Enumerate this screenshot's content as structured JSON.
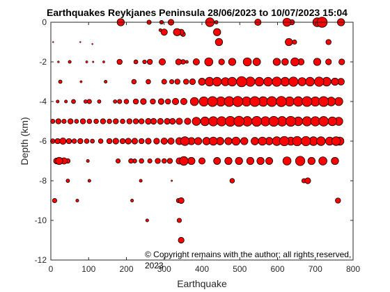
{
  "chart_data": {
    "type": "scatter",
    "title": "Earthquakes Reykjanes Peninsula 28/06/2023 to 10/07/2023 15:04",
    "xlabel": "Earthquake",
    "ylabel": "Depth (km)",
    "xlim": [
      0,
      800
    ],
    "ylim": [
      -12,
      0
    ],
    "xticks": [
      0,
      100,
      200,
      300,
      400,
      500,
      600,
      700,
      800
    ],
    "yticks": [
      0,
      -2,
      -4,
      -6,
      -8,
      -10,
      -12
    ],
    "grid": false,
    "marker_color": "#ff0000",
    "marker_edge_color": "#000000",
    "size_encodes": "magnitude",
    "annotation": {
      "line1": "© Copyright remains with the author; all rights reserved,",
      "line2": "2023"
    },
    "points": [
      [
        185,
        0,
        2.5
      ],
      [
        260,
        0,
        1.5
      ],
      [
        293,
        0,
        1.3
      ],
      [
        318,
        0,
        2.0
      ],
      [
        421,
        0,
        3.0
      ],
      [
        438,
        0,
        1.2
      ],
      [
        548,
        0,
        2.2
      ],
      [
        625,
        0,
        2.8
      ],
      [
        638,
        0,
        1.8
      ],
      [
        705,
        0,
        3.0
      ],
      [
        718,
        0,
        3.5
      ],
      [
        768,
        0,
        2.5
      ],
      [
        290,
        -0.4,
        1.0
      ],
      [
        300,
        -0.5,
        2.2
      ],
      [
        334,
        -0.5,
        2.5
      ],
      [
        345,
        -0.5,
        2.0
      ],
      [
        350,
        -0.6,
        1.6
      ],
      [
        440,
        -0.5,
        2.5
      ],
      [
        445,
        -1.0,
        2.5
      ],
      [
        630,
        -1.0,
        2.5
      ],
      [
        645,
        -1.0,
        1.5
      ],
      [
        735,
        -1.0,
        1.8
      ],
      [
        6,
        -1.0,
        0.4
      ],
      [
        78,
        -1.0,
        0.4
      ],
      [
        110,
        -1.1,
        0.4
      ],
      [
        20,
        -2,
        0.7
      ],
      [
        50,
        -2,
        1.0
      ],
      [
        95,
        -2,
        0.8
      ],
      [
        112,
        -2,
        0.6
      ],
      [
        140,
        -2,
        0.8
      ],
      [
        182,
        -2,
        1.8
      ],
      [
        225,
        -2,
        1.4
      ],
      [
        248,
        -2,
        1.3
      ],
      [
        262,
        -2,
        1.8
      ],
      [
        295,
        -2,
        2.2
      ],
      [
        338,
        -2,
        2.0
      ],
      [
        350,
        -2,
        1.6
      ],
      [
        360,
        -2,
        1.0
      ],
      [
        385,
        -2,
        2.2
      ],
      [
        418,
        -2,
        2.8
      ],
      [
        452,
        -2,
        2.0
      ],
      [
        480,
        -2,
        2.5
      ],
      [
        520,
        -2,
        2.8
      ],
      [
        545,
        -2,
        2.6
      ],
      [
        598,
        -2,
        2.5
      ],
      [
        620,
        -2,
        2.3
      ],
      [
        646,
        -2,
        2.8
      ],
      [
        662,
        -2,
        2.2
      ],
      [
        705,
        -2,
        2.5
      ],
      [
        735,
        -2,
        2.0
      ],
      [
        770,
        -2,
        2.0
      ],
      [
        25,
        -3,
        1.2
      ],
      [
        80,
        -3,
        0.8
      ],
      [
        145,
        -3,
        1.0
      ],
      [
        220,
        -3,
        1.6
      ],
      [
        258,
        -3,
        1.6
      ],
      [
        300,
        -3,
        1.7
      ],
      [
        320,
        -3,
        1.5
      ],
      [
        335,
        -3,
        1.8
      ],
      [
        358,
        -3,
        1.8
      ],
      [
        375,
        -3,
        2.0
      ],
      [
        400,
        -3,
        2.4
      ],
      [
        420,
        -3,
        3.0
      ],
      [
        440,
        -3,
        3.0
      ],
      [
        462,
        -3,
        2.8
      ],
      [
        480,
        -3,
        3.0
      ],
      [
        505,
        -3,
        3.5
      ],
      [
        528,
        -3,
        3.2
      ],
      [
        552,
        -3,
        3.0
      ],
      [
        575,
        -3,
        3.0
      ],
      [
        598,
        -3,
        3.2
      ],
      [
        620,
        -3,
        3.0
      ],
      [
        642,
        -3,
        3.2
      ],
      [
        665,
        -3,
        2.8
      ],
      [
        686,
        -3,
        3.0
      ],
      [
        710,
        -3,
        3.2
      ],
      [
        730,
        -3,
        3.0
      ],
      [
        752,
        -3,
        2.5
      ],
      [
        768,
        -3,
        2.3
      ],
      [
        18,
        -4,
        1.0
      ],
      [
        40,
        -4,
        1.0
      ],
      [
        60,
        -4,
        1.4
      ],
      [
        92,
        -4,
        1.2
      ],
      [
        102,
        -4,
        1.5
      ],
      [
        128,
        -4,
        1.2
      ],
      [
        170,
        -4,
        1.2
      ],
      [
        182,
        -4,
        1.5
      ],
      [
        200,
        -4,
        1.6
      ],
      [
        225,
        -4,
        1.8
      ],
      [
        245,
        -4,
        2.0
      ],
      [
        270,
        -4,
        1.8
      ],
      [
        292,
        -4,
        2.0
      ],
      [
        310,
        -4,
        1.8
      ],
      [
        330,
        -4,
        2.2
      ],
      [
        352,
        -4,
        2.2
      ],
      [
        380,
        -4,
        2.8
      ],
      [
        405,
        -4,
        3.2
      ],
      [
        428,
        -4,
        3.4
      ],
      [
        450,
        -4,
        3.2
      ],
      [
        472,
        -4,
        3.4
      ],
      [
        495,
        -4,
        3.5
      ],
      [
        518,
        -4,
        3.2
      ],
      [
        540,
        -4,
        3.4
      ],
      [
        562,
        -4,
        3.3
      ],
      [
        585,
        -4,
        3.4
      ],
      [
        610,
        -4,
        3.5
      ],
      [
        632,
        -4,
        3.2
      ],
      [
        655,
        -4,
        3.3
      ],
      [
        678,
        -4,
        3.4
      ],
      [
        700,
        -4,
        3.2
      ],
      [
        722,
        -4,
        3.4
      ],
      [
        742,
        -4,
        3.0
      ],
      [
        762,
        -4,
        2.8
      ],
      [
        5,
        -5,
        1.5
      ],
      [
        20,
        -5,
        1.8
      ],
      [
        35,
        -5,
        1.5
      ],
      [
        52,
        -5,
        1.8
      ],
      [
        68,
        -5,
        1.4
      ],
      [
        85,
        -5,
        1.8
      ],
      [
        102,
        -5,
        1.6
      ],
      [
        120,
        -5,
        1.6
      ],
      [
        138,
        -5,
        1.8
      ],
      [
        155,
        -5,
        1.6
      ],
      [
        172,
        -5,
        1.8
      ],
      [
        190,
        -5,
        1.6
      ],
      [
        208,
        -5,
        1.8
      ],
      [
        225,
        -5,
        1.8
      ],
      [
        240,
        -5,
        1.8
      ],
      [
        258,
        -5,
        2.0
      ],
      [
        272,
        -5,
        2.0
      ],
      [
        290,
        -5,
        2.0
      ],
      [
        308,
        -5,
        2.0
      ],
      [
        322,
        -5,
        2.0
      ],
      [
        340,
        -5,
        2.2
      ],
      [
        362,
        -5,
        2.2
      ],
      [
        385,
        -5,
        2.8
      ],
      [
        408,
        -5,
        3.0
      ],
      [
        430,
        -5,
        3.2
      ],
      [
        452,
        -5,
        3.2
      ],
      [
        475,
        -5,
        3.4
      ],
      [
        498,
        -5,
        3.5
      ],
      [
        520,
        -5,
        3.3
      ],
      [
        545,
        -5,
        3.4
      ],
      [
        568,
        -5,
        3.2
      ],
      [
        590,
        -5,
        3.4
      ],
      [
        612,
        -5,
        3.3
      ],
      [
        635,
        -5,
        3.4
      ],
      [
        655,
        -5,
        3.0
      ],
      [
        678,
        -5,
        3.2
      ],
      [
        700,
        -5,
        3.2
      ],
      [
        722,
        -5,
        3.3
      ],
      [
        745,
        -5,
        3.0
      ],
      [
        762,
        -5,
        2.8
      ],
      [
        5,
        -6,
        1.6
      ],
      [
        18,
        -6,
        1.8
      ],
      [
        32,
        -6,
        2.2
      ],
      [
        48,
        -6,
        1.8
      ],
      [
        62,
        -6,
        1.6
      ],
      [
        78,
        -6,
        1.8
      ],
      [
        95,
        -6,
        1.6
      ],
      [
        110,
        -6,
        1.4
      ],
      [
        132,
        -6,
        1.6
      ],
      [
        155,
        -6,
        1.8
      ],
      [
        172,
        -6,
        2.0
      ],
      [
        190,
        -6,
        1.8
      ],
      [
        205,
        -6,
        2.0
      ],
      [
        222,
        -6,
        2.0
      ],
      [
        240,
        -6,
        1.8
      ],
      [
        258,
        -6,
        2.0
      ],
      [
        280,
        -6,
        2.0
      ],
      [
        300,
        -6,
        2.2
      ],
      [
        318,
        -6,
        2.2
      ],
      [
        340,
        -6,
        2.4
      ],
      [
        355,
        -6,
        3.0
      ],
      [
        372,
        -6,
        2.5
      ],
      [
        390,
        -6,
        2.5
      ],
      [
        412,
        -6,
        2.6
      ],
      [
        430,
        -6,
        2.8
      ],
      [
        448,
        -6,
        2.6
      ],
      [
        470,
        -6,
        2.5
      ],
      [
        490,
        -6,
        2.8
      ],
      [
        512,
        -6,
        2.5
      ],
      [
        540,
        -6,
        2.6
      ],
      [
        560,
        -6,
        2.8
      ],
      [
        578,
        -6,
        2.6
      ],
      [
        598,
        -6,
        3.0
      ],
      [
        618,
        -6,
        3.2
      ],
      [
        635,
        -6,
        2.8
      ],
      [
        652,
        -6,
        3.2
      ],
      [
        675,
        -6,
        3.2
      ],
      [
        695,
        -6,
        3.0
      ],
      [
        715,
        -6,
        3.0
      ],
      [
        738,
        -6,
        2.8
      ],
      [
        755,
        -6,
        3.0
      ],
      [
        765,
        -6,
        2.8
      ],
      [
        15,
        -7,
        2.0
      ],
      [
        22,
        -7,
        2.5
      ],
      [
        35,
        -7,
        2.2
      ],
      [
        45,
        -7,
        1.6
      ],
      [
        98,
        -7,
        1.0
      ],
      [
        178,
        -7,
        1.5
      ],
      [
        212,
        -7,
        1.6
      ],
      [
        222,
        -7,
        1.4
      ],
      [
        240,
        -7,
        1.6
      ],
      [
        262,
        -7,
        1.5
      ],
      [
        283,
        -7,
        1.8
      ],
      [
        300,
        -7,
        1.6
      ],
      [
        315,
        -7,
        1.8
      ],
      [
        340,
        -7,
        2.2
      ],
      [
        352,
        -7,
        3.0
      ],
      [
        372,
        -7,
        2.5
      ],
      [
        400,
        -7,
        2.2
      ],
      [
        440,
        -7,
        2.4
      ],
      [
        470,
        -7,
        2.5
      ],
      [
        498,
        -7,
        2.5
      ],
      [
        528,
        -7,
        2.5
      ],
      [
        555,
        -7,
        2.5
      ],
      [
        578,
        -7,
        2.4
      ],
      [
        625,
        -7,
        2.8
      ],
      [
        660,
        -7,
        3.2
      ],
      [
        690,
        -7,
        2.5
      ],
      [
        720,
        -7,
        2.8
      ],
      [
        752,
        -7,
        2.5
      ],
      [
        45,
        -8,
        1.2
      ],
      [
        102,
        -8,
        1.0
      ],
      [
        238,
        -8,
        1.0
      ],
      [
        320,
        -8,
        0.6
      ],
      [
        480,
        -8,
        1.6
      ],
      [
        670,
        -8,
        1.5
      ],
      [
        680,
        -8,
        2.0
      ],
      [
        10,
        -9,
        1.5
      ],
      [
        70,
        -9,
        1.0
      ],
      [
        215,
        -9,
        1.0
      ],
      [
        338,
        -9,
        1.5
      ],
      [
        345,
        -9,
        2.0
      ],
      [
        760,
        -9,
        1.8
      ],
      [
        255,
        -10,
        1.0
      ],
      [
        340,
        -10,
        1.5
      ],
      [
        345,
        -11,
        2.0
      ]
    ]
  }
}
